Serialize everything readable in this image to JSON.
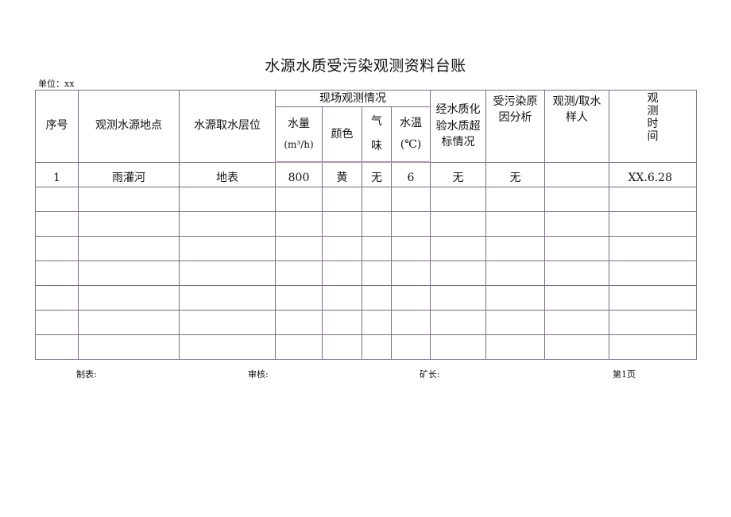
{
  "title": "水源水质受污染观测资料台账",
  "unit_label": "单位：xx",
  "headers": {
    "seq": "序号",
    "location": "观测水源地点",
    "layer": "水源取水层位",
    "onsite_group": "现场观测情况",
    "flow": "水量",
    "flow_unit": "(m³/h)",
    "color": "颜色",
    "smell_1": "气",
    "smell_2": "味",
    "temp": "水温",
    "temp_unit": "(℃)",
    "lab": "经水质化验水质超标情况",
    "cause": "受污染原因分析",
    "sampler": "观测/取水样人",
    "time": "观测时间"
  },
  "rows": [
    [
      "1",
      "雨灌河",
      "地表",
      "800",
      "黄",
      "无",
      "6",
      "无",
      "无",
      "",
      "XX.6.28"
    ],
    [
      "",
      "",
      "",
      "",
      "",
      "",
      "",
      "",
      "",
      "",
      ""
    ],
    [
      "",
      "",
      "",
      "",
      "",
      "",
      "",
      "",
      "",
      "",
      ""
    ],
    [
      "",
      "",
      "",
      "",
      "",
      "",
      "",
      "",
      "",
      "",
      ""
    ],
    [
      "",
      "",
      "",
      "",
      "",
      "",
      "",
      "",
      "",
      "",
      ""
    ],
    [
      "",
      "",
      "",
      "",
      "",
      "",
      "",
      "",
      "",
      "",
      ""
    ],
    [
      "",
      "",
      "",
      "",
      "",
      "",
      "",
      "",
      "",
      "",
      ""
    ],
    [
      "",
      "",
      "",
      "",
      "",
      "",
      "",
      "",
      "",
      "",
      ""
    ]
  ],
  "footer": {
    "maker": "制表:",
    "reviewer": "审核:",
    "manager": "矿长:",
    "page": "第1页"
  }
}
